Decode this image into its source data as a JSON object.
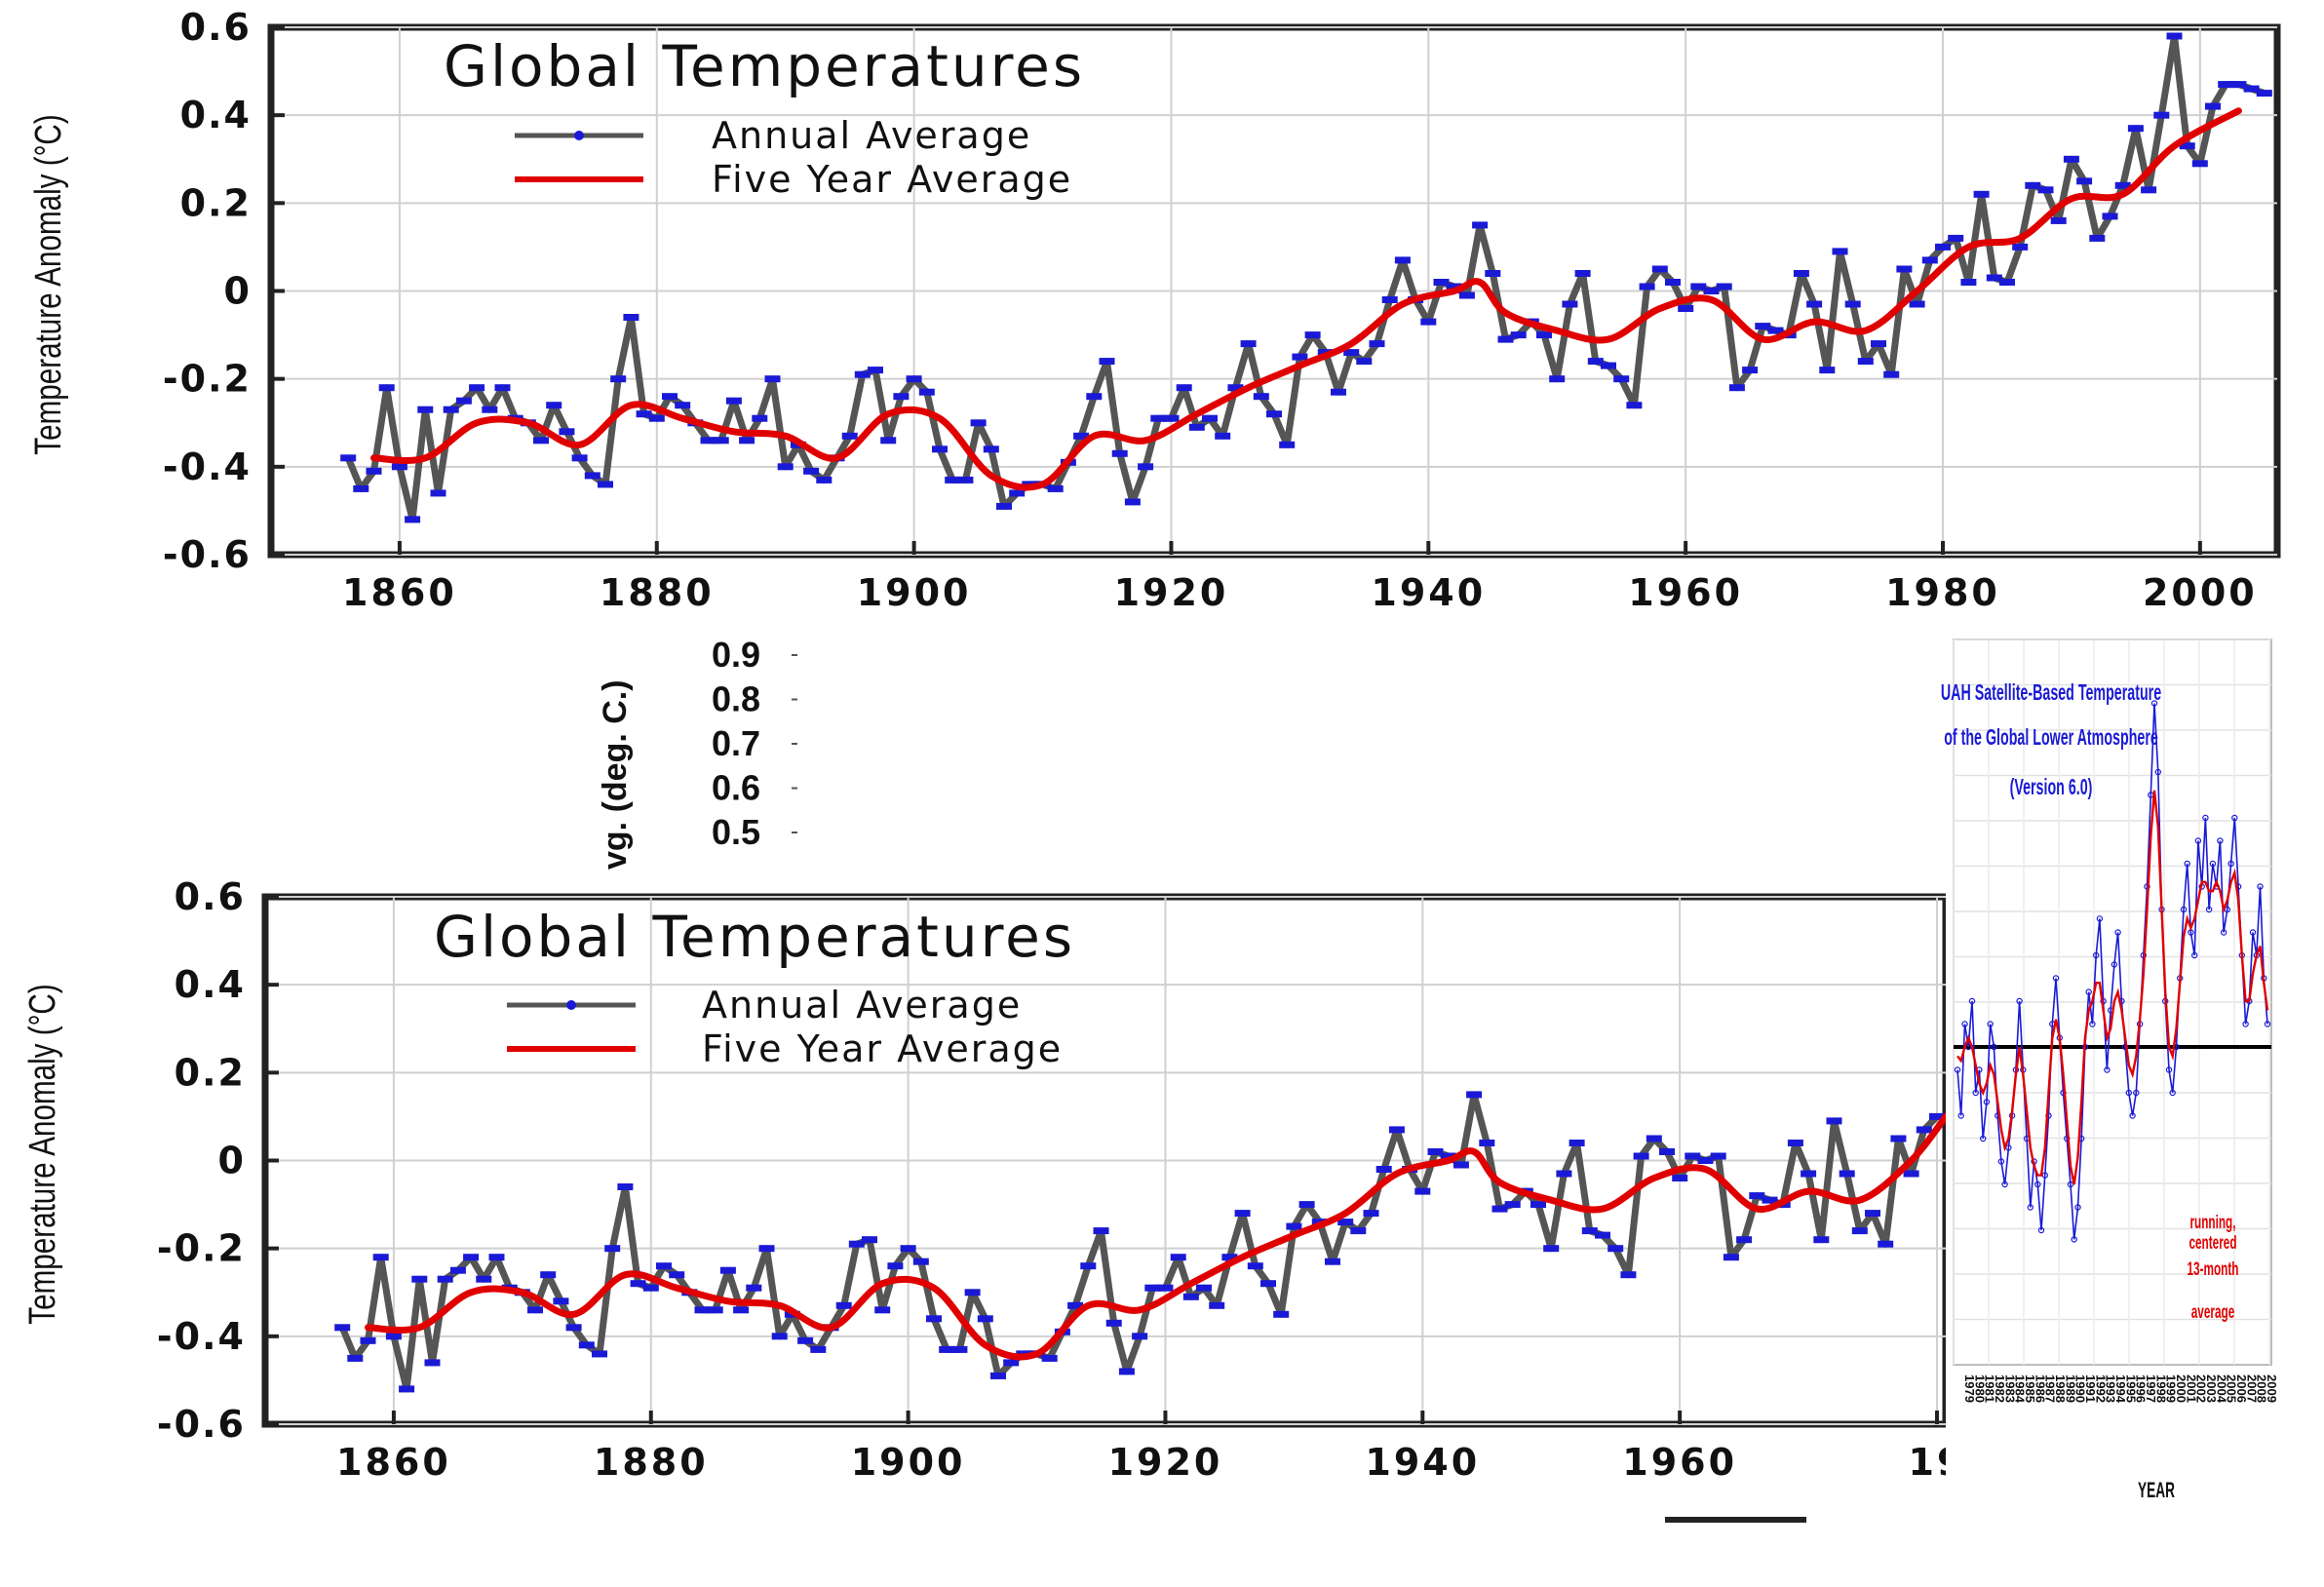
{
  "chart_data": [
    {
      "type": "line",
      "title": "Global Temperatures",
      "ylabel": "Temperature Anomaly (°C)",
      "xlabel": "",
      "xlim": [
        1850,
        2006
      ],
      "ylim": [
        -0.6,
        0.6
      ],
      "x_ticks": [
        "1860",
        "1880",
        "1900",
        "1920",
        "1940",
        "1960",
        "1980",
        "2000"
      ],
      "y_ticks": [
        "0.6",
        "0.4",
        "0.2",
        "0",
        "-0.2",
        "-0.4",
        "-0.6"
      ],
      "legend_placement": "top-left",
      "series": [
        {
          "name": "Annual Average",
          "color": "#1a1ad6",
          "line_color": "#555555",
          "x": [
            1856,
            1857,
            1858,
            1859,
            1860,
            1861,
            1862,
            1863,
            1864,
            1865,
            1866,
            1867,
            1868,
            1869,
            1870,
            1871,
            1872,
            1873,
            1874,
            1875,
            1876,
            1877,
            1878,
            1879,
            1880,
            1881,
            1882,
            1883,
            1884,
            1885,
            1886,
            1887,
            1888,
            1889,
            1890,
            1891,
            1892,
            1893,
            1894,
            1895,
            1896,
            1897,
            1898,
            1899,
            1900,
            1901,
            1902,
            1903,
            1904,
            1905,
            1906,
            1907,
            1908,
            1909,
            1910,
            1911,
            1912,
            1913,
            1914,
            1915,
            1916,
            1917,
            1918,
            1919,
            1920,
            1921,
            1922,
            1923,
            1924,
            1925,
            1926,
            1927,
            1928,
            1929,
            1930,
            1931,
            1932,
            1933,
            1934,
            1935,
            1936,
            1937,
            1938,
            1939,
            1940,
            1941,
            1942,
            1943,
            1944,
            1945,
            1946,
            1947,
            1948,
            1949,
            1950,
            1951,
            1952,
            1953,
            1954,
            1955,
            1956,
            1957,
            1958,
            1959,
            1960,
            1961,
            1962,
            1963,
            1964,
            1965,
            1966,
            1967,
            1968,
            1969,
            1970,
            1971,
            1972,
            1973,
            1974,
            1975,
            1976,
            1977,
            1978,
            1979,
            1980,
            1981,
            1982,
            1983,
            1984,
            1985,
            1986,
            1987,
            1988,
            1989,
            1990,
            1991,
            1992,
            1993,
            1994,
            1995,
            1996,
            1997,
            1998,
            1999,
            2000,
            2001,
            2002,
            2003,
            2004,
            2005
          ],
          "values": [
            -0.38,
            -0.45,
            -0.41,
            -0.22,
            -0.4,
            -0.52,
            -0.27,
            -0.46,
            -0.27,
            -0.25,
            -0.22,
            -0.27,
            -0.22,
            -0.29,
            -0.3,
            -0.34,
            -0.26,
            -0.32,
            -0.38,
            -0.42,
            -0.44,
            -0.2,
            -0.06,
            -0.28,
            -0.29,
            -0.24,
            -0.26,
            -0.3,
            -0.34,
            -0.34,
            -0.25,
            -0.34,
            -0.29,
            -0.2,
            -0.4,
            -0.35,
            -0.41,
            -0.43,
            -0.38,
            -0.33,
            -0.19,
            -0.18,
            -0.34,
            -0.24,
            -0.2,
            -0.23,
            -0.36,
            -0.43,
            -0.43,
            -0.3,
            -0.36,
            -0.49,
            -0.46,
            -0.44,
            -0.44,
            -0.45,
            -0.39,
            -0.33,
            -0.24,
            -0.16,
            -0.37,
            -0.48,
            -0.4,
            -0.29,
            -0.29,
            -0.22,
            -0.31,
            -0.29,
            -0.33,
            -0.22,
            -0.12,
            -0.24,
            -0.28,
            -0.35,
            -0.15,
            -0.1,
            -0.14,
            -0.23,
            -0.14,
            -0.16,
            -0.12,
            -0.02,
            0.07,
            -0.02,
            -0.07,
            0.02,
            0.01,
            -0.01,
            0.15,
            0.04,
            -0.11,
            -0.1,
            -0.07,
            -0.1,
            -0.2,
            -0.03,
            0.04,
            -0.16,
            -0.17,
            -0.2,
            -0.26,
            0.01,
            0.05,
            0.02,
            -0.04,
            0.01,
            0.0,
            0.01,
            -0.22,
            -0.18,
            -0.08,
            -0.09,
            -0.1,
            0.04,
            -0.03,
            -0.18,
            0.09,
            -0.03,
            -0.16,
            -0.12,
            -0.19,
            0.05,
            -0.03,
            0.07,
            0.1,
            0.12,
            0.02,
            0.22,
            0.03,
            0.02,
            0.1,
            0.24,
            0.23,
            0.16,
            0.3,
            0.25,
            0.12,
            0.17,
            0.24,
            0.37,
            0.23,
            0.4,
            0.58,
            0.33,
            0.29,
            0.42,
            0.47,
            0.47,
            0.46,
            0.45
          ]
        },
        {
          "name": "Five Year Average",
          "color": "#e00000",
          "x": [
            1858,
            1862,
            1866,
            1870,
            1874,
            1878,
            1882,
            1886,
            1890,
            1894,
            1898,
            1902,
            1906,
            1910,
            1914,
            1918,
            1922,
            1926,
            1930,
            1934,
            1938,
            1942,
            1944,
            1946,
            1950,
            1954,
            1958,
            1962,
            1966,
            1970,
            1974,
            1978,
            1982,
            1986,
            1990,
            1994,
            1998,
            2003
          ],
          "values": [
            -0.38,
            -0.38,
            -0.3,
            -0.3,
            -0.35,
            -0.26,
            -0.29,
            -0.32,
            -0.33,
            -0.38,
            -0.28,
            -0.29,
            -0.42,
            -0.44,
            -0.33,
            -0.34,
            -0.28,
            -0.22,
            -0.17,
            -0.12,
            -0.03,
            0.0,
            0.02,
            -0.05,
            -0.09,
            -0.11,
            -0.04,
            -0.02,
            -0.11,
            -0.07,
            -0.09,
            0.0,
            0.1,
            0.12,
            0.21,
            0.22,
            0.33,
            0.41
          ]
        }
      ]
    },
    {
      "type": "line",
      "title": "Global Temperatures",
      "ylabel": "Temperature Anomaly (°C)",
      "xlabel": "",
      "xlim": [
        1850,
        2006
      ],
      "ylim": [
        -0.6,
        0.6
      ],
      "x_ticks": [
        "1860",
        "1880",
        "1900",
        "1920",
        "1940",
        "1960",
        "19"
      ],
      "y_ticks": [
        "0.6",
        "0.4",
        "0.2",
        "0",
        "-0.2",
        "-0.4",
        "-0.6"
      ],
      "legend": [
        "Annual Average",
        "Five Year Average"
      ],
      "note": "same data as first chart, partially covered on the right"
    },
    {
      "type": "line",
      "title": "UAH Satellite-Based Temperature of the Global Lower Atmosphere (Version 6.0)",
      "title_lines": [
        "UAH Satellite-Based Temperature",
        "of the Global Lower Atmosphere",
        "(Version 6.0)"
      ],
      "xlabel": "YEAR",
      "x_tick_years": [
        "1979",
        "1980",
        "1981",
        "1982",
        "1983",
        "1984",
        "1985",
        "1986",
        "1987",
        "1988",
        "1989",
        "1990",
        "1991",
        "1992",
        "1993",
        "1994",
        "1995",
        "1996",
        "1997",
        "1998",
        "1999",
        "2000",
        "2001",
        "2002",
        "2003",
        "2004",
        "2005",
        "2006",
        "2007",
        "2008",
        "2009"
      ],
      "annotation_lines": [
        "running,",
        "centered",
        "13-month",
        "average"
      ],
      "series": [
        {
          "name": "",
          "color": "#1a1ad6",
          "values": [
            -0.05,
            -0.15,
            0.05,
            0.0,
            0.1,
            -0.1,
            -0.05,
            -0.2,
            -0.12,
            0.05,
            0.0,
            -0.15,
            -0.25,
            -0.3,
            -0.22,
            -0.15,
            -0.05,
            0.1,
            -0.05,
            -0.2,
            -0.35,
            -0.25,
            -0.3,
            -0.4,
            -0.28,
            -0.15,
            0.05,
            0.15,
            0.02,
            -0.1,
            -0.2,
            -0.3,
            -0.42,
            -0.35,
            -0.2,
            0.0,
            0.12,
            0.05,
            0.2,
            0.28,
            0.1,
            -0.05,
            0.08,
            0.18,
            0.25,
            0.1,
            0.0,
            -0.1,
            -0.15,
            -0.1,
            0.05,
            0.2,
            0.35,
            0.55,
            0.75,
            0.6,
            0.3,
            0.1,
            -0.05,
            -0.1,
            0.0,
            0.15,
            0.3,
            0.4,
            0.25,
            0.2,
            0.45,
            0.35,
            0.5,
            0.3,
            0.4,
            0.35,
            0.45,
            0.25,
            0.3,
            0.4,
            0.5,
            0.35,
            0.2,
            0.05,
            0.1,
            0.25,
            0.2,
            0.35,
            0.15,
            0.05
          ]
        },
        {
          "name": "running, centered 13-month average",
          "color": "#e00000",
          "values": [
            -0.02,
            -0.03,
            0.0,
            0.02,
            0.0,
            -0.04,
            -0.08,
            -0.1,
            -0.08,
            -0.04,
            -0.06,
            -0.12,
            -0.18,
            -0.22,
            -0.2,
            -0.14,
            -0.06,
            0.0,
            -0.06,
            -0.14,
            -0.22,
            -0.26,
            -0.28,
            -0.28,
            -0.22,
            -0.1,
            0.02,
            0.06,
            0.02,
            -0.06,
            -0.16,
            -0.26,
            -0.3,
            -0.24,
            -0.12,
            0.02,
            0.08,
            0.1,
            0.14,
            0.14,
            0.08,
            0.02,
            0.04,
            0.1,
            0.12,
            0.08,
            0.02,
            -0.04,
            -0.06,
            -0.02,
            0.06,
            0.16,
            0.3,
            0.46,
            0.56,
            0.48,
            0.3,
            0.12,
            0.0,
            -0.02,
            0.04,
            0.14,
            0.24,
            0.28,
            0.26,
            0.28,
            0.32,
            0.36,
            0.36,
            0.34,
            0.34,
            0.36,
            0.34,
            0.3,
            0.32,
            0.36,
            0.38,
            0.32,
            0.2,
            0.1,
            0.1,
            0.16,
            0.2,
            0.22,
            0.14,
            0.08
          ]
        }
      ]
    },
    {
      "type": "line",
      "note": "partially hidden chart behind the others",
      "ylabel_fragment": "vg. (deg. C.)",
      "y_ticks": [
        "0.9",
        "0.8",
        "0.7",
        "0.6",
        "0.5"
      ]
    }
  ]
}
